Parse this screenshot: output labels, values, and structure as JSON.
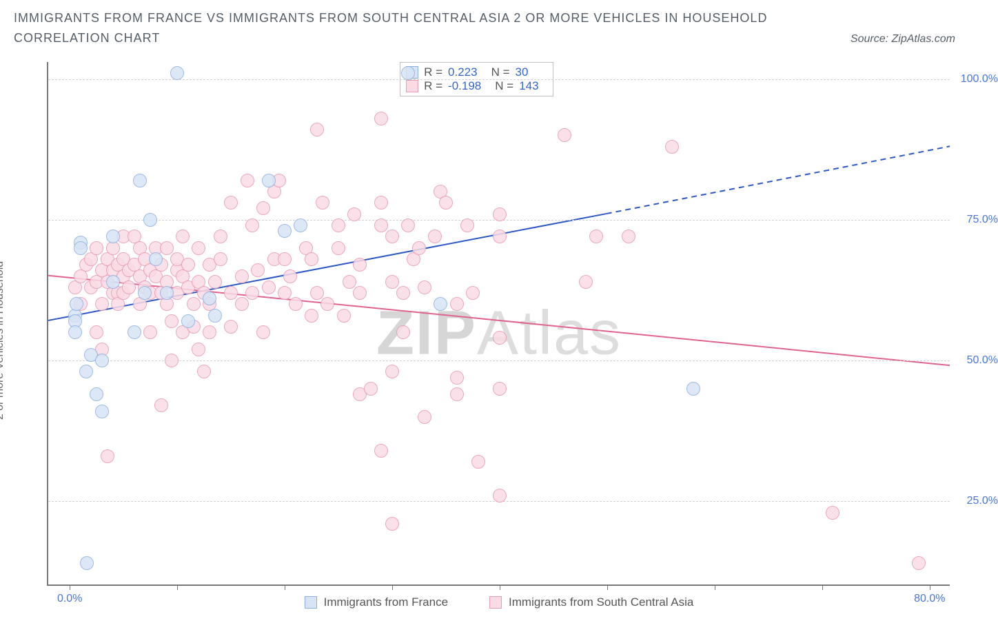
{
  "header": {
    "title": "IMMIGRANTS FROM FRANCE VS IMMIGRANTS FROM SOUTH CENTRAL ASIA 2 OR MORE VEHICLES IN HOUSEHOLD CORRELATION CHART",
    "source": "Source: ZipAtlas.com"
  },
  "y_axis": {
    "label": "2 or more Vehicles in Household",
    "ticks": [
      25.0,
      50.0,
      75.0,
      100.0
    ],
    "tick_labels": [
      "25.0%",
      "50.0%",
      "75.0%",
      "100.0%"
    ],
    "min": 10.0,
    "max": 103.0
  },
  "x_axis": {
    "ticks": [
      0,
      10,
      20,
      30,
      40,
      50,
      60,
      70,
      80
    ],
    "shown_tick_labels": {
      "0": "0.0%",
      "80": "80.0%"
    },
    "min": -2.0,
    "max": 82.0
  },
  "series": {
    "france": {
      "label": "Immigrants from France",
      "color_fill": "#d6e4f5",
      "color_stroke": "#8bb0e0",
      "point_radius": 10,
      "R_label": "R = ",
      "R_value": "0.223",
      "N_label": "N = ",
      "N_value": "30",
      "trend": {
        "color": "#2a56c6",
        "width": 2,
        "y_at_xmin": 57.0,
        "y_at_x50": 76.0,
        "y_at_xmax": 88.0,
        "dash_split_x": 50.0
      },
      "points": [
        [
          0.5,
          58
        ],
        [
          0.5,
          57
        ],
        [
          0.5,
          55
        ],
        [
          0.6,
          60
        ],
        [
          1.0,
          71
        ],
        [
          1.0,
          70
        ],
        [
          1.5,
          48
        ],
        [
          1.6,
          14
        ],
        [
          2.0,
          51
        ],
        [
          2.5,
          44
        ],
        [
          3.0,
          41
        ],
        [
          3.0,
          50
        ],
        [
          4.0,
          72
        ],
        [
          4.0,
          64
        ],
        [
          6.0,
          55
        ],
        [
          6.5,
          82
        ],
        [
          7.0,
          62
        ],
        [
          7.5,
          75
        ],
        [
          8.0,
          68
        ],
        [
          9.0,
          62
        ],
        [
          10.0,
          101
        ],
        [
          11.0,
          57
        ],
        [
          13.0,
          61
        ],
        [
          13.5,
          58
        ],
        [
          18.5,
          82
        ],
        [
          20.0,
          73
        ],
        [
          21.5,
          74
        ],
        [
          31.5,
          101
        ],
        [
          34.5,
          60
        ],
        [
          58.0,
          45
        ]
      ]
    },
    "scasia": {
      "label": "Immigrants from South Central Asia",
      "color_fill": "#fadbe4",
      "color_stroke": "#e79ab3",
      "point_radius": 10,
      "R_label": "R = ",
      "R_value": "-0.198",
      "N_label": "N = ",
      "N_value": "143",
      "trend": {
        "color": "#e06291",
        "width": 2,
        "y_at_xmin": 65.0,
        "y_at_xmax": 49.0
      },
      "points": [
        [
          0.5,
          63
        ],
        [
          1,
          65
        ],
        [
          1,
          60
        ],
        [
          1.5,
          67
        ],
        [
          2,
          63
        ],
        [
          2,
          68
        ],
        [
          2.5,
          64
        ],
        [
          2.5,
          70
        ],
        [
          2.5,
          55
        ],
        [
          3,
          66
        ],
        [
          3,
          60
        ],
        [
          3,
          52
        ],
        [
          3.5,
          68
        ],
        [
          3.5,
          64
        ],
        [
          3.5,
          33
        ],
        [
          4,
          62
        ],
        [
          4,
          66
        ],
        [
          4,
          70
        ],
        [
          4.5,
          67
        ],
        [
          4.5,
          62
        ],
        [
          4.5,
          60
        ],
        [
          5,
          65
        ],
        [
          5,
          68
        ],
        [
          5,
          62
        ],
        [
          5,
          72
        ],
        [
          5.5,
          66
        ],
        [
          5.5,
          63
        ],
        [
          6,
          67
        ],
        [
          6,
          72
        ],
        [
          6.5,
          60
        ],
        [
          6.5,
          65
        ],
        [
          6.5,
          70
        ],
        [
          7,
          63
        ],
        [
          7,
          68
        ],
        [
          7.5,
          66
        ],
        [
          7.5,
          62
        ],
        [
          7.5,
          55
        ],
        [
          8,
          65
        ],
        [
          8,
          70
        ],
        [
          8.5,
          62
        ],
        [
          8.5,
          67
        ],
        [
          8.5,
          42
        ],
        [
          9,
          64
        ],
        [
          9,
          70
        ],
        [
          9,
          60
        ],
        [
          9.5,
          50
        ],
        [
          9.5,
          57
        ],
        [
          10,
          66
        ],
        [
          10,
          62
        ],
        [
          10,
          68
        ],
        [
          10.5,
          55
        ],
        [
          10.5,
          65
        ],
        [
          10.5,
          72
        ],
        [
          11,
          63
        ],
        [
          11,
          67
        ],
        [
          11.5,
          60
        ],
        [
          11.5,
          56
        ],
        [
          12,
          52
        ],
        [
          12,
          64
        ],
        [
          12,
          70
        ],
        [
          12.5,
          48
        ],
        [
          12.5,
          62
        ],
        [
          13,
          55
        ],
        [
          13,
          60
        ],
        [
          13,
          67
        ],
        [
          13.5,
          64
        ],
        [
          14,
          68
        ],
        [
          14,
          72
        ],
        [
          15,
          56
        ],
        [
          15,
          62
        ],
        [
          15,
          78
        ],
        [
          16,
          60
        ],
        [
          16,
          65
        ],
        [
          16.5,
          82
        ],
        [
          17,
          74
        ],
        [
          17,
          62
        ],
        [
          17.5,
          66
        ],
        [
          18,
          77
        ],
        [
          18,
          55
        ],
        [
          18.5,
          63
        ],
        [
          19,
          68
        ],
        [
          19,
          80
        ],
        [
          19.5,
          82
        ],
        [
          20,
          62
        ],
        [
          20,
          68
        ],
        [
          20.5,
          65
        ],
        [
          21,
          60
        ],
        [
          22,
          70
        ],
        [
          22.5,
          58
        ],
        [
          22.5,
          68
        ],
        [
          23,
          62
        ],
        [
          23.5,
          78
        ],
        [
          23,
          91
        ],
        [
          24,
          60
        ],
        [
          25,
          70
        ],
        [
          25,
          74
        ],
        [
          25.5,
          58
        ],
        [
          26,
          64
        ],
        [
          26.5,
          76
        ],
        [
          27,
          62
        ],
        [
          27,
          67
        ],
        [
          27,
          44
        ],
        [
          28,
          45
        ],
        [
          29,
          34
        ],
        [
          29,
          74
        ],
        [
          29,
          78
        ],
        [
          29,
          93
        ],
        [
          30,
          48
        ],
        [
          30,
          72
        ],
        [
          30,
          64
        ],
        [
          30,
          21
        ],
        [
          31,
          62
        ],
        [
          31,
          55
        ],
        [
          31.5,
          74
        ],
        [
          32,
          68
        ],
        [
          32.5,
          70
        ],
        [
          33,
          40
        ],
        [
          33,
          63
        ],
        [
          34,
          72
        ],
        [
          34.5,
          80
        ],
        [
          35,
          78
        ],
        [
          36,
          47
        ],
        [
          36,
          44
        ],
        [
          36,
          60
        ],
        [
          37,
          74
        ],
        [
          37.5,
          62
        ],
        [
          38,
          32
        ],
        [
          40,
          26
        ],
        [
          40,
          72
        ],
        [
          40,
          76
        ],
        [
          40,
          54
        ],
        [
          40,
          45
        ],
        [
          46,
          90
        ],
        [
          48,
          64
        ],
        [
          49,
          72
        ],
        [
          52,
          72
        ],
        [
          56,
          88
        ],
        [
          71,
          23
        ],
        [
          79,
          14
        ]
      ]
    }
  },
  "stats_box": {
    "left_pct": 39.0,
    "top_pct": 0.0
  },
  "legend": {
    "swatch_size": 18
  },
  "watermark": {
    "bold": "ZIP",
    "light": "Atlas"
  },
  "style": {
    "grid_color": "#d0d0d0",
    "axis_color": "#777777",
    "y_tick_label_color": "#4a74d8",
    "background": "#ffffff"
  }
}
